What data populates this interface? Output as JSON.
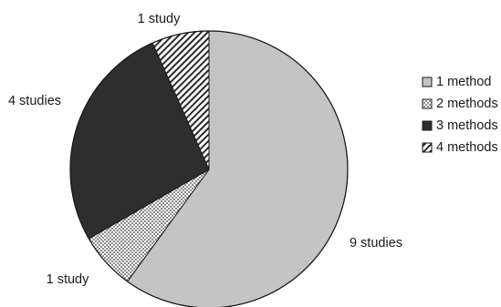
{
  "chart_data": {
    "type": "pie",
    "start_angle_deg": 0,
    "direction": "clockwise",
    "categories": [
      "1 method",
      "2 methods",
      "3 methods",
      "4 methods"
    ],
    "values": [
      9,
      1,
      4,
      1
    ],
    "slice_labels": [
      "9 studies",
      "1 study",
      "4 studies",
      "1 study"
    ],
    "legend": {
      "placement": "right",
      "entries": [
        "1 method",
        "2 methods",
        "3 methods",
        "4 methods"
      ]
    },
    "fills": [
      {
        "pattern": "solid",
        "color": "#c4c4c4"
      },
      {
        "pattern": "dots",
        "color": "#ffffff",
        "mark_color": "#3a3a3a"
      },
      {
        "pattern": "solid",
        "color": "#2e2e2e"
      },
      {
        "pattern": "diagonal-stripes",
        "color": "#ffffff",
        "mark_color": "#2a2a2a"
      }
    ],
    "title": ""
  }
}
